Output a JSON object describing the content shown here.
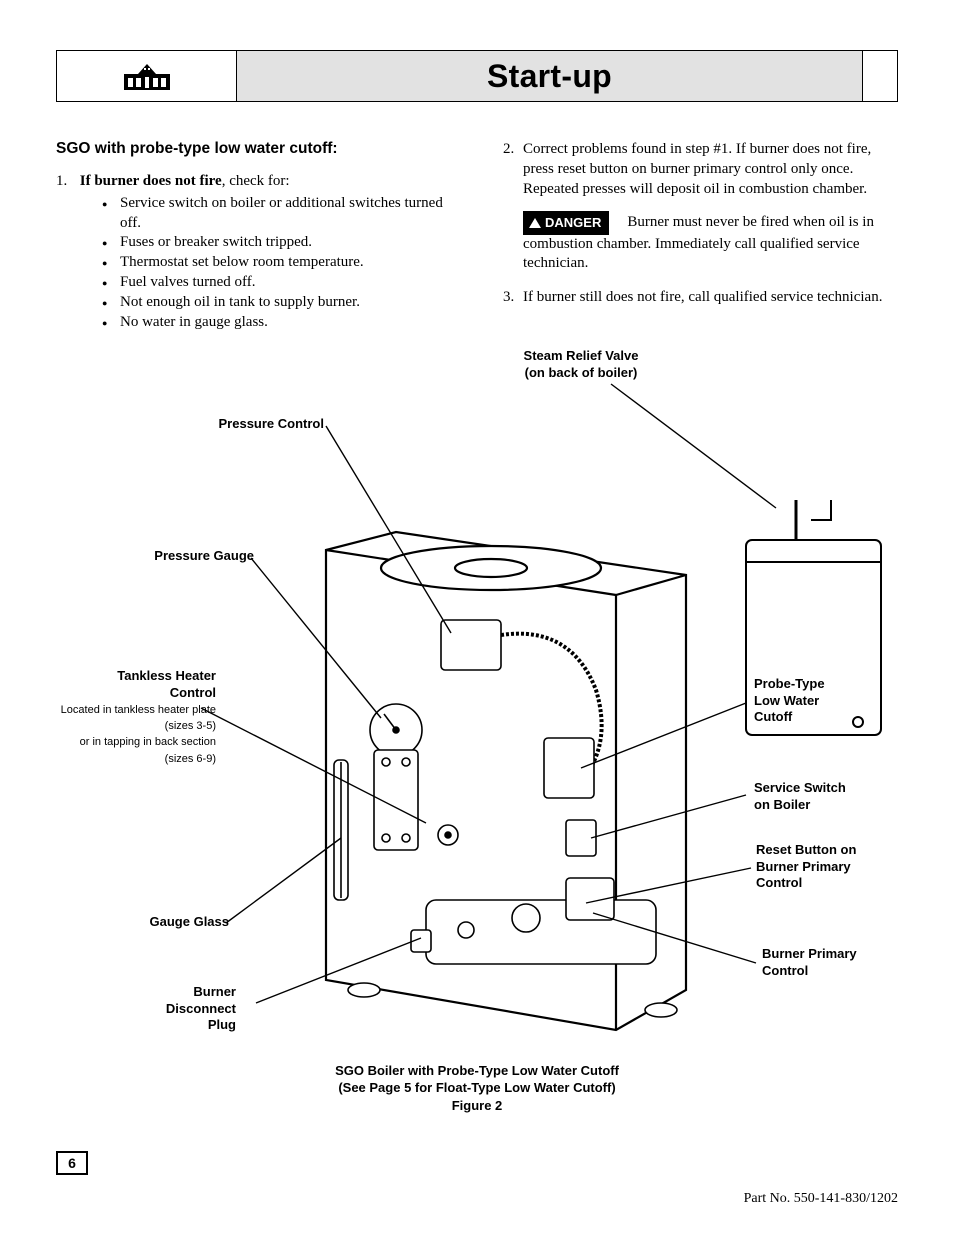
{
  "header": {
    "title": "Start-up"
  },
  "left_col": {
    "subhead": "SGO with probe-type low water cutoff:",
    "item1_prefix": "If  burner does not fire",
    "item1_suffix": ", check for:",
    "bullets": [
      "Service switch on boiler or additional switches turned off.",
      "Fuses or breaker switch tripped.",
      "Thermostat set below room temperature.",
      "Fuel valves turned off.",
      "Not enough oil in tank to supply burner.",
      "No water in gauge glass."
    ]
  },
  "right_col": {
    "item2": "Correct problems found in step #1. If burner does not fire, press reset button on burner primary control only once. Repeated presses will deposit oil in combustion chamber.",
    "danger_label": "DANGER",
    "danger_text": "Burner must never be fired when oil is in combustion chamber. Immediately call qualified service technician.",
    "item3": "If burner still does not fire, call qualified service technician."
  },
  "figure": {
    "labels": {
      "steam_relief": "Steam Relief Valve\n(on back of boiler)",
      "pressure_control": "Pressure Control",
      "pressure_gauge": "Pressure Gauge",
      "tankless_heater": "Tankless Heater\nControl",
      "tankless_note": "Located in tankless heater plate (sizes 3-5)\nor in tapping in back section (sizes  6-9)",
      "gauge_glass": "Gauge Glass",
      "burner_disconnect": "Burner\nDisconnect\nPlug",
      "probe_lwco": "Probe-Type\nLow Water\nCutoff",
      "service_switch": "Service Switch\non Boiler",
      "reset_button": "Reset Button on\nBurner Primary\nControl",
      "burner_primary": "Burner Primary\nControl"
    },
    "caption_line1": "SGO Boiler with Probe-Type Low Water Cutoff",
    "caption_line2": "(See Page 5 for Float-Type Low Water Cutoff)",
    "caption_line3": "Figure 2"
  },
  "page_number": "6",
  "part_no": "Part No. 550-141-830/1202",
  "colors": {
    "band_bg": "#e2e2e2",
    "text": "#000000",
    "page_bg": "#ffffff"
  }
}
